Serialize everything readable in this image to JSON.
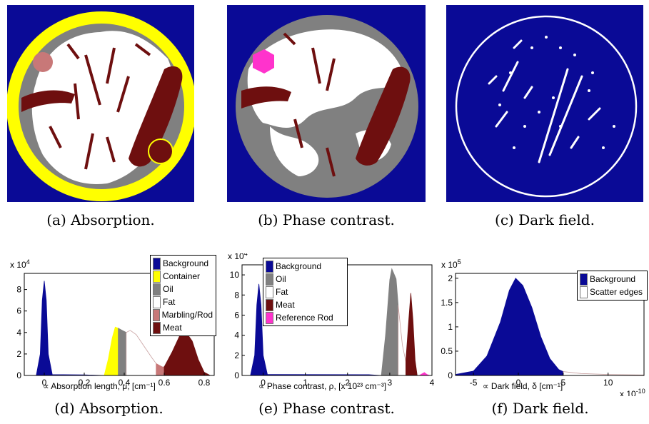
{
  "captions": {
    "a": "(a) Absorption.",
    "b": "(b) Phase contrast.",
    "c": "(c) Dark field.",
    "d": "(d) Absorption.",
    "e": "(e) Phase contrast.",
    "f": "(f) Dark field."
  },
  "colors": {
    "background": "#0a0a96",
    "container": "#ffff00",
    "oil": "#808080",
    "fat": "#ffffff",
    "marbling": "#c87878",
    "meat": "#6e0f0f",
    "reference_rod": "#ff33cc"
  },
  "chart_data": [
    {
      "type": "area",
      "multiplier": "x 10^4",
      "xlabel": "∝ Absorption length, μ, [cm⁻¹]",
      "xlim": [
        -0.1,
        0.85
      ],
      "ylim": [
        0,
        95000
      ],
      "x_ticks": [
        "0",
        "0.2",
        "0.4",
        "0.6",
        "0.8"
      ],
      "x_tick_values": [
        0,
        0.2,
        0.4,
        0.6,
        0.8
      ],
      "y_ticks": [
        "0",
        "2",
        "4",
        "6",
        "8"
      ],
      "y_tick_values": [
        0,
        20000,
        40000,
        60000,
        80000
      ],
      "legend": [
        "Background",
        "Container",
        "Oil",
        "Fat",
        "Marbling/Rod",
        "Meat"
      ],
      "legend_colors": [
        "#0a0a96",
        "#ffff00",
        "#808080",
        "#ffffff",
        "#c87878",
        "#6e0f0f"
      ],
      "series": [
        {
          "name": "Background",
          "color": "#0a0a96",
          "points": [
            [
              -0.04,
              0
            ],
            [
              -0.02,
              20000
            ],
            [
              -0.01,
              70000
            ],
            [
              0,
              88000
            ],
            [
              0.01,
              70000
            ],
            [
              0.02,
              20000
            ],
            [
              0.04,
              800
            ],
            [
              0.2,
              500
            ],
            [
              0.3,
              0
            ]
          ]
        },
        {
          "name": "Container",
          "color": "#ffff00",
          "points": [
            [
              0.3,
              0
            ],
            [
              0.32,
              15000
            ],
            [
              0.34,
              35000
            ],
            [
              0.355,
              45000
            ],
            [
              0.37,
              44000
            ],
            [
              0.37,
              0
            ]
          ]
        },
        {
          "name": "Oil",
          "color": "#808080",
          "points": [
            [
              0.37,
              0
            ],
            [
              0.37,
              44000
            ],
            [
              0.39,
              42000
            ],
            [
              0.41,
              40000
            ],
            [
              0.41,
              0
            ]
          ]
        },
        {
          "name": "Fat",
          "color": "#ffffff",
          "points": [
            [
              0.41,
              0
            ],
            [
              0.41,
              40000
            ],
            [
              0.43,
              42000
            ],
            [
              0.46,
              38000
            ],
            [
              0.5,
              27000
            ],
            [
              0.54,
              16000
            ],
            [
              0.56,
              11000
            ],
            [
              0.56,
              0
            ]
          ]
        },
        {
          "name": "Marbling/Rod",
          "color": "#c87878",
          "points": [
            [
              0.56,
              0
            ],
            [
              0.56,
              11000
            ],
            [
              0.59,
              8000
            ],
            [
              0.6,
              8000
            ],
            [
              0.6,
              0
            ]
          ]
        },
        {
          "name": "Meat",
          "color": "#6e0f0f",
          "points": [
            [
              0.6,
              0
            ],
            [
              0.6,
              8000
            ],
            [
              0.64,
              22000
            ],
            [
              0.68,
              38000
            ],
            [
              0.71,
              40000
            ],
            [
              0.74,
              32000
            ],
            [
              0.77,
              15000
            ],
            [
              0.8,
              3000
            ],
            [
              0.83,
              0
            ]
          ]
        }
      ]
    },
    {
      "type": "area",
      "multiplier": "x 10^4",
      "xlabel": "∝ Phase contrast, ρ, [x 10²³ cm⁻³]",
      "xlim": [
        -0.5,
        4.0
      ],
      "ylim": [
        0,
        110000
      ],
      "x_ticks": [
        "0",
        "1",
        "2",
        "3",
        "4"
      ],
      "x_tick_values": [
        0,
        1,
        2,
        3,
        4
      ],
      "y_ticks": [
        "0",
        "2",
        "4",
        "6",
        "8",
        "10"
      ],
      "y_tick_values": [
        0,
        20000,
        40000,
        60000,
        80000,
        100000
      ],
      "legend": [
        "Background",
        "Oil",
        "Fat",
        "Meat",
        "Reference Rod"
      ],
      "legend_colors": [
        "#0a0a96",
        "#808080",
        "#ffffff",
        "#6e0f0f",
        "#ff33cc"
      ],
      "series": [
        {
          "name": "Background",
          "color": "#0a0a96",
          "points": [
            [
              -0.3,
              0
            ],
            [
              -0.2,
              20000
            ],
            [
              -0.15,
              70000
            ],
            [
              -0.1,
              91000
            ],
            [
              -0.05,
              70000
            ],
            [
              0,
              20000
            ],
            [
              0.1,
              1000
            ],
            [
              2.5,
              800
            ],
            [
              2.8,
              0
            ]
          ]
        },
        {
          "name": "Oil",
          "color": "#808080",
          "points": [
            [
              2.8,
              0
            ],
            [
              2.9,
              40000
            ],
            [
              3.0,
              95000
            ],
            [
              3.05,
              106000
            ],
            [
              3.15,
              96000
            ],
            [
              3.2,
              70000
            ],
            [
              3.2,
              0
            ]
          ]
        },
        {
          "name": "Fat",
          "color": "#ffffff",
          "points": [
            [
              3.2,
              0
            ],
            [
              3.2,
              70000
            ],
            [
              3.3,
              30000
            ],
            [
              3.38,
              14000
            ],
            [
              3.38,
              0
            ]
          ]
        },
        {
          "name": "Meat",
          "color": "#6e0f0f",
          "points": [
            [
              3.38,
              0
            ],
            [
              3.38,
              14000
            ],
            [
              3.45,
              55000
            ],
            [
              3.5,
              82000
            ],
            [
              3.55,
              55000
            ],
            [
              3.6,
              15000
            ],
            [
              3.65,
              0
            ]
          ]
        },
        {
          "name": "Reference Rod",
          "color": "#ff33cc",
          "points": [
            [
              3.7,
              0
            ],
            [
              3.78,
              2000
            ],
            [
              3.82,
              3000
            ],
            [
              3.88,
              1000
            ],
            [
              3.95,
              0
            ]
          ]
        }
      ]
    },
    {
      "type": "area",
      "multiplier_y": "x 10^5",
      "multiplier_x": "x 10^-10",
      "xlabel": "∝ Dark field, δ  [cm⁻¹]",
      "xlim": [
        -7,
        14
      ],
      "ylim": [
        0,
        210000
      ],
      "x_ticks": [
        "-5",
        "0",
        "5",
        "10"
      ],
      "x_tick_values": [
        -5,
        0,
        5,
        10
      ],
      "y_ticks": [
        "0",
        "0.5",
        "1",
        "1.5",
        "2"
      ],
      "y_tick_values": [
        0,
        50000,
        100000,
        150000,
        200000
      ],
      "legend": [
        "Background",
        "Scatter edges"
      ],
      "legend_colors": [
        "#0a0a96",
        "#ffffff"
      ],
      "series": [
        {
          "name": "Background",
          "color": "#0a0a96",
          "points": [
            [
              -7,
              2000
            ],
            [
              -5,
              9000
            ],
            [
              -3.5,
              40000
            ],
            [
              -2,
              110000
            ],
            [
              -1,
              175000
            ],
            [
              -0.3,
              200000
            ],
            [
              0.5,
              185000
            ],
            [
              1.5,
              140000
            ],
            [
              2.5,
              80000
            ],
            [
              3.5,
              35000
            ],
            [
              4.5,
              12000
            ],
            [
              5,
              8000
            ],
            [
              5,
              0
            ],
            [
              -7,
              0
            ]
          ]
        },
        {
          "name": "Scatter edges",
          "color": "#ffffff",
          "points": [
            [
              5,
              0
            ],
            [
              5,
              8000
            ],
            [
              7,
              4000
            ],
            [
              10,
              2000
            ],
            [
              14,
              1000
            ],
            [
              14,
              0
            ]
          ]
        }
      ]
    }
  ]
}
